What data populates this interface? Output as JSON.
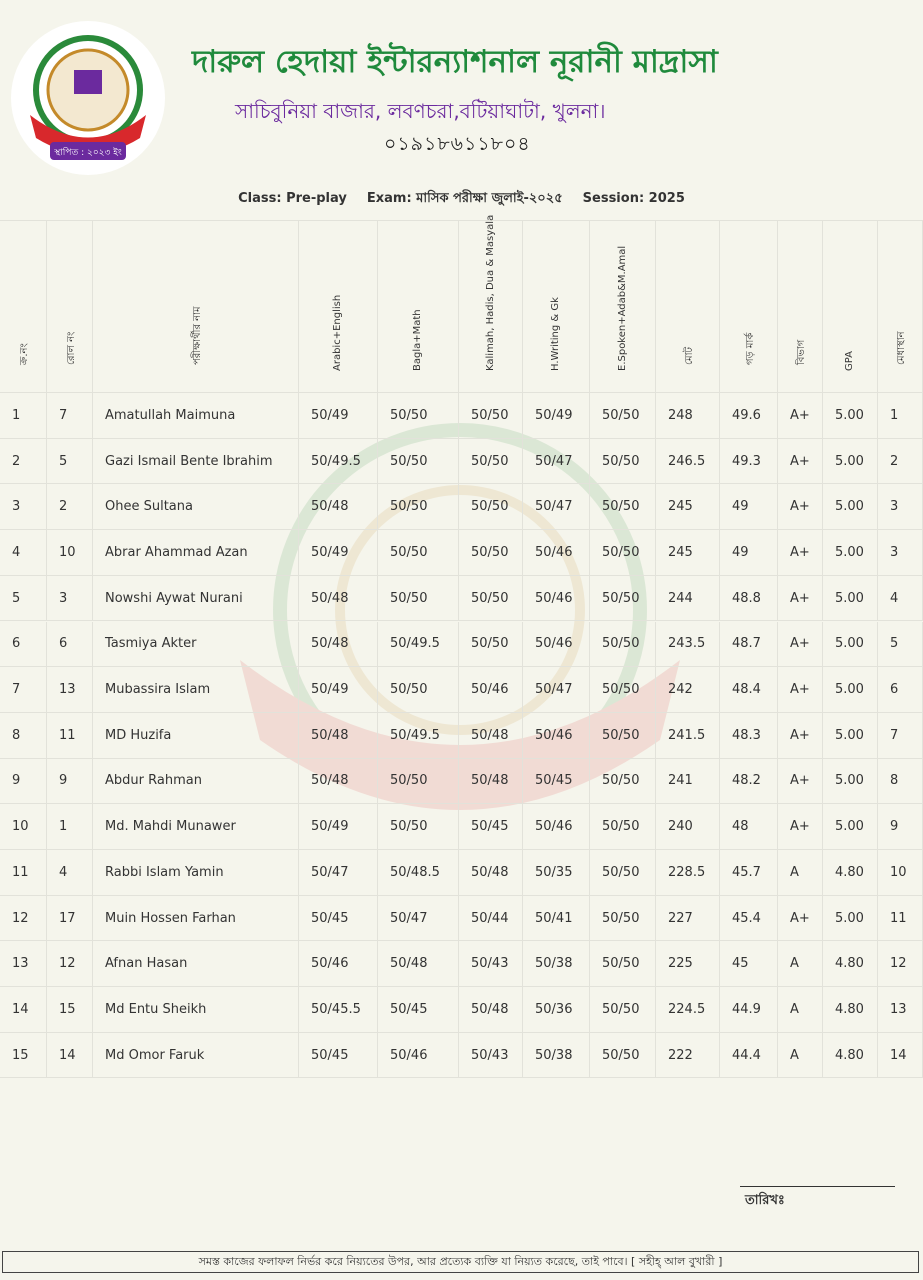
{
  "header": {
    "title": "দারুল হেদায়া ইন্টারন্যাশনাল নূরানী মাদ্রাসা",
    "address": "সাচিবুনিয়া বাজার, লবণচরা,বটিয়াঘাটা, খুলনা।",
    "phone": "০১৯১৮৬১১৮০৪",
    "logo_text": "স্থাপিত : ২০২৩ ইং"
  },
  "info": {
    "class": "Class: Pre-play",
    "exam": "Exam: মাসিক পরীক্ষা জুলাই-২০২৫",
    "session": "Session: 2025"
  },
  "table": {
    "headers": [
      "ক্র.নং",
      "রোল নং",
      "পরীক্ষার্থীর নাম",
      "Arabic+English",
      "Bagla+Math",
      "Kalimah, Hadis, Dua & Masyala",
      "H.Writing & Gk",
      "E.Spoken+Adab&M.Amal",
      "মোট",
      "গড় মার্ক",
      "বিভাগ",
      "GPA",
      "মেধাস্থান"
    ],
    "rows": [
      [
        "1",
        "7",
        "Amatullah Maimuna",
        "50/49",
        "50/50",
        "50/50",
        "50/49",
        "50/50",
        "248",
        "49.6",
        "A+",
        "5.00",
        "1"
      ],
      [
        "2",
        "5",
        "Gazi Ismail Bente Ibrahim",
        "50/49.5",
        "50/50",
        "50/50",
        "50/47",
        "50/50",
        "246.5",
        "49.3",
        "A+",
        "5.00",
        "2"
      ],
      [
        "3",
        "2",
        "Ohee Sultana",
        "50/48",
        "50/50",
        "50/50",
        "50/47",
        "50/50",
        "245",
        "49",
        "A+",
        "5.00",
        "3"
      ],
      [
        "4",
        "10",
        "Abrar Ahammad Azan",
        "50/49",
        "50/50",
        "50/50",
        "50/46",
        "50/50",
        "245",
        "49",
        "A+",
        "5.00",
        "3"
      ],
      [
        "5",
        "3",
        "Nowshi Aywat Nurani",
        "50/48",
        "50/50",
        "50/50",
        "50/46",
        "50/50",
        "244",
        "48.8",
        "A+",
        "5.00",
        "4"
      ],
      [
        "6",
        "6",
        "Tasmiya Akter",
        "50/48",
        "50/49.5",
        "50/50",
        "50/46",
        "50/50",
        "243.5",
        "48.7",
        "A+",
        "5.00",
        "5"
      ],
      [
        "7",
        "13",
        "Mubassira Islam",
        "50/49",
        "50/50",
        "50/46",
        "50/47",
        "50/50",
        "242",
        "48.4",
        "A+",
        "5.00",
        "6"
      ],
      [
        "8",
        "11",
        "MD Huzifa",
        "50/48",
        "50/49.5",
        "50/48",
        "50/46",
        "50/50",
        "241.5",
        "48.3",
        "A+",
        "5.00",
        "7"
      ],
      [
        "9",
        "9",
        "Abdur Rahman",
        "50/48",
        "50/50",
        "50/48",
        "50/45",
        "50/50",
        "241",
        "48.2",
        "A+",
        "5.00",
        "8"
      ],
      [
        "10",
        "1",
        "Md. Mahdi Munawer",
        "50/49",
        "50/50",
        "50/45",
        "50/46",
        "50/50",
        "240",
        "48",
        "A+",
        "5.00",
        "9"
      ],
      [
        "11",
        "4",
        "Rabbi Islam Yamin",
        "50/47",
        "50/48.5",
        "50/48",
        "50/35",
        "50/50",
        "228.5",
        "45.7",
        "A",
        "4.80",
        "10"
      ],
      [
        "12",
        "17",
        "Muin Hossen Farhan",
        "50/45",
        "50/47",
        "50/44",
        "50/41",
        "50/50",
        "227",
        "45.4",
        "A+",
        "5.00",
        "11"
      ],
      [
        "13",
        "12",
        "Afnan Hasan",
        "50/46",
        "50/48",
        "50/43",
        "50/38",
        "50/50",
        "225",
        "45",
        "A",
        "4.80",
        "12"
      ],
      [
        "14",
        "15",
        "Md Entu Sheikh",
        "50/45.5",
        "50/45",
        "50/48",
        "50/36",
        "50/50",
        "224.5",
        "44.9",
        "A",
        "4.80",
        "13"
      ],
      [
        "15",
        "14",
        "Md Omor Faruk",
        "50/45",
        "50/46",
        "50/43",
        "50/38",
        "50/50",
        "222",
        "44.4",
        "A",
        "4.80",
        "14"
      ]
    ]
  },
  "footer": {
    "date_label": "তারিখঃ",
    "quote": "সমস্ত কাজের ফলাফল নির্ভর করে নিয়্যতের উপর, আর প্রত্যেক ব্যক্তি যা নিয়্যত করেছে, তাই পাবে। [ সহীহ্ আল বুখারী ]"
  }
}
